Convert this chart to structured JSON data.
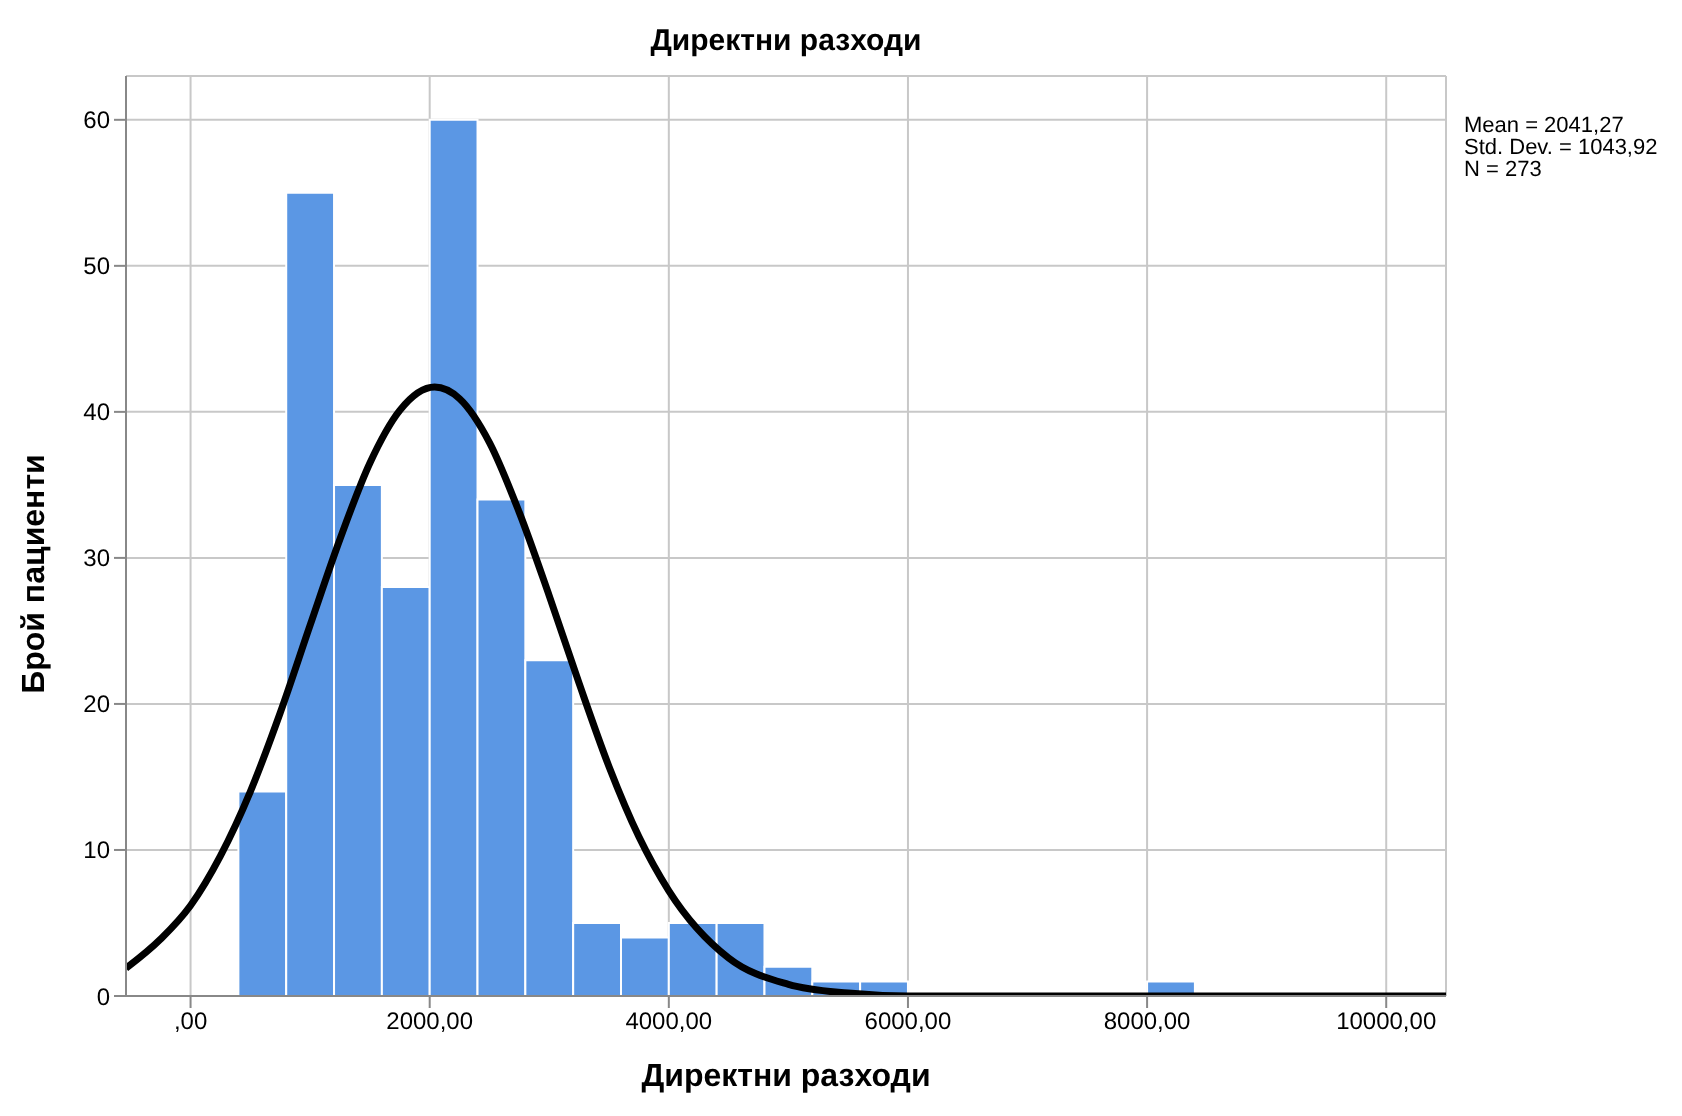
{
  "chart_data": {
    "type": "histogram",
    "title": "Директни разходи",
    "xlabel": "Директни разходи",
    "ylabel": "Брой пациенти",
    "bins": [
      400,
      800,
      1200,
      1600,
      2000,
      2400,
      2800,
      3200,
      3600,
      4000,
      4400,
      4800,
      5200,
      5600,
      6000,
      6400,
      6800,
      7200,
      7600,
      8000,
      8400
    ],
    "values": [
      14,
      55,
      35,
      28,
      60,
      34,
      23,
      5,
      4,
      5,
      5,
      2,
      1,
      1,
      0,
      0,
      0,
      0,
      0,
      1
    ],
    "color": "#5b97e4",
    "series": [
      {
        "type": "line",
        "color": "#000000",
        "x": [
          -540,
          -250,
          0,
          250,
          500,
          750,
          1000,
          1250,
          1500,
          1750,
          2041,
          2250,
          2500,
          2750,
          3000,
          3250,
          3500,
          3750,
          4000,
          4500,
          5000,
          5500,
          6000,
          7000,
          8000,
          9000,
          10500
        ],
        "values": [
          1.9,
          3.9,
          6.2,
          9.6,
          14.0,
          19.4,
          25.4,
          31.3,
          36.5,
          40.1,
          41.7,
          40.9,
          37.9,
          33.1,
          27.4,
          21.4,
          15.7,
          10.9,
          7.2,
          2.6,
          0.8,
          0.2,
          0,
          0,
          0,
          0,
          0
        ]
      }
    ],
    "xlim": [
      -540,
      10500
    ],
    "xticks": [
      {
        "value": 0,
        "label": ",00"
      },
      {
        "value": 2000,
        "label": "2000,00"
      },
      {
        "value": 4000,
        "label": "4000,00"
      },
      {
        "value": 6000,
        "label": "6000,00"
      },
      {
        "value": 8000,
        "label": "8000,00"
      },
      {
        "value": 10000,
        "label": "10000,00"
      }
    ],
    "ylim": [
      0,
      63
    ],
    "yticks": [
      0,
      10,
      20,
      30,
      40,
      50,
      60
    ],
    "grid": true,
    "annotations": [
      "Mean = 2041,27",
      "Std. Dev. = 1043,92",
      "N = 273"
    ]
  }
}
